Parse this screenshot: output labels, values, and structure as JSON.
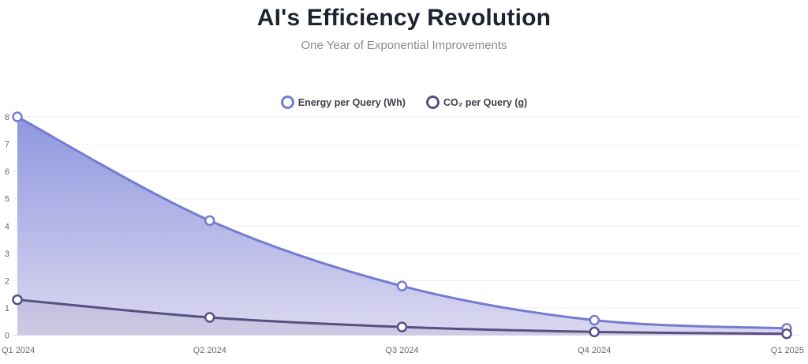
{
  "header": {
    "title": "AI's Efficiency Revolution",
    "subtitle": "One Year of Exponential Improvements"
  },
  "chart_data": {
    "type": "area",
    "title": "AI's Efficiency Revolution",
    "subtitle": "One Year of Exponential Improvements",
    "categories": [
      "Q1 2024",
      "Q2 2024",
      "Q3 2024",
      "Q4 2024",
      "Q1 2025"
    ],
    "series": [
      {
        "name": "Energy per Query (Wh)",
        "values": [
          8,
          4.2,
          1.8,
          0.55,
          0.25
        ],
        "line_color": "#747cd1",
        "marker_fill": "#ffffff",
        "area_gradient_top": "#8f97df",
        "area_gradient_bottom": "#dcd9f0"
      },
      {
        "name": "CO₂ per Query (g)",
        "values": [
          1.3,
          0.65,
          0.3,
          0.12,
          0.05
        ],
        "line_color": "#565181",
        "marker_fill": "#ffffff",
        "area_fill": "rgba(86,81,129,0.10)"
      }
    ],
    "xlabel": "",
    "ylabel": "",
    "ylim": [
      0,
      8
    ],
    "yticks": [
      0,
      1,
      2,
      3,
      4,
      5,
      6,
      7,
      8
    ],
    "grid": true,
    "legend_position": "top-center",
    "axis_label_color": "#6b6b6b",
    "grid_color": "#f1f1f1",
    "baseline_color": "#e2e2e2"
  }
}
